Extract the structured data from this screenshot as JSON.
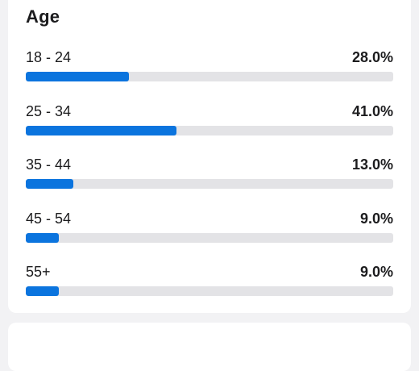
{
  "age_card": {
    "title": "Age",
    "rows": [
      {
        "label": "18 - 24",
        "value": "28.0%",
        "fraction": 0.28
      },
      {
        "label": "25 - 34",
        "value": "41.0%",
        "fraction": 0.41
      },
      {
        "label": "35 - 44",
        "value": "13.0%",
        "fraction": 0.13
      },
      {
        "label": "45 - 54",
        "value": "9.0%",
        "fraction": 0.09
      },
      {
        "label": "55+",
        "value": "9.0%",
        "fraction": 0.09
      }
    ]
  },
  "colors": {
    "bar_fill": "#0b74de",
    "bar_track": "#e3e3e6",
    "background": "#f2f2f4",
    "card": "#ffffff"
  }
}
